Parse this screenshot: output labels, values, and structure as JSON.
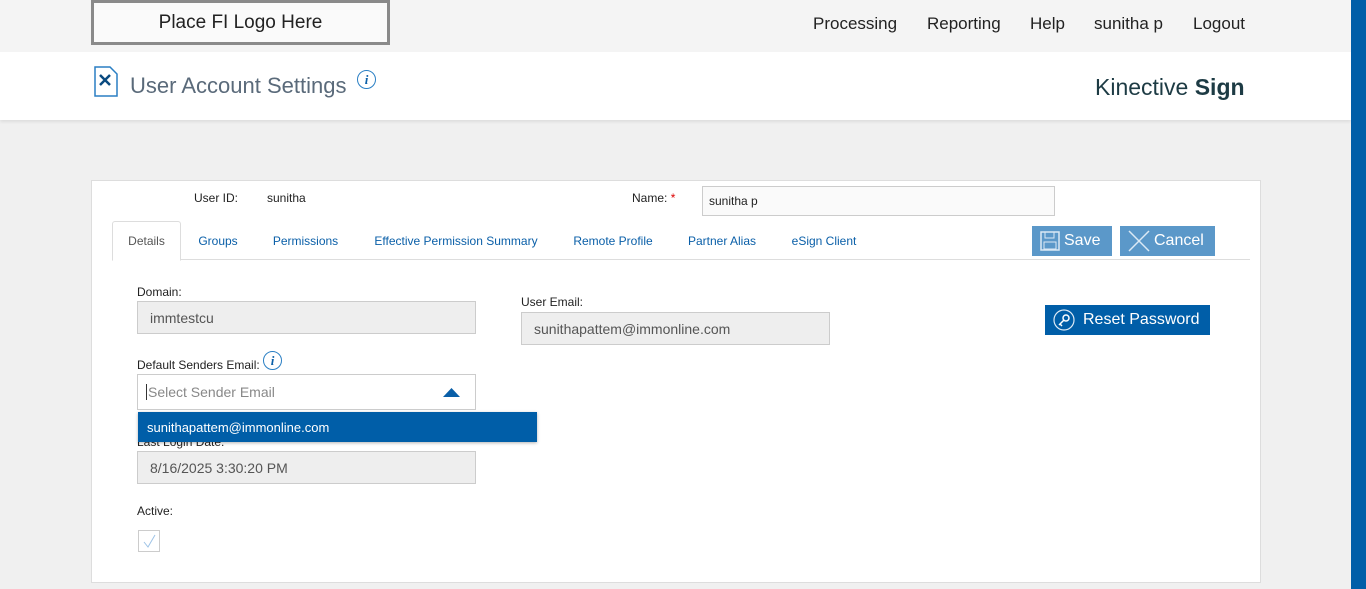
{
  "top": {
    "logo": "Place FI Logo Here",
    "nav": [
      "Processing",
      "Reporting",
      "Help",
      "sunitha p",
      "Logout"
    ]
  },
  "header": {
    "title": "User Account Settings",
    "brand_light": "Kinective",
    "brand_bold": "Sign"
  },
  "form": {
    "user_id_label": "User ID:",
    "user_id": "sunitha",
    "name_label": "Name:",
    "required_mark": "*",
    "name_value": "sunitha p",
    "tabs": [
      "Details",
      "Groups",
      "Permissions",
      "Effective Permission Summary",
      "Remote Profile",
      "Partner Alias",
      "eSign Client"
    ],
    "save": "Save",
    "cancel": "Cancel",
    "reset_password": "Reset Password",
    "domain_label": "Domain:",
    "domain": "immtestcu",
    "user_email_label": "User Email:",
    "user_email": "sunithapattem@immonline.com",
    "default_sender_label": "Default Senders Email:",
    "sender_placeholder": "Select Sender Email",
    "sender_options": [
      "sunithapattem@immonline.com"
    ],
    "last_login_label": "Last Login Date:",
    "last_login": "8/16/2025 3:30:20 PM",
    "active_label": "Active:",
    "active": true
  },
  "colors": {
    "primary": "#005ea8",
    "button_light": "#5b98c9"
  }
}
